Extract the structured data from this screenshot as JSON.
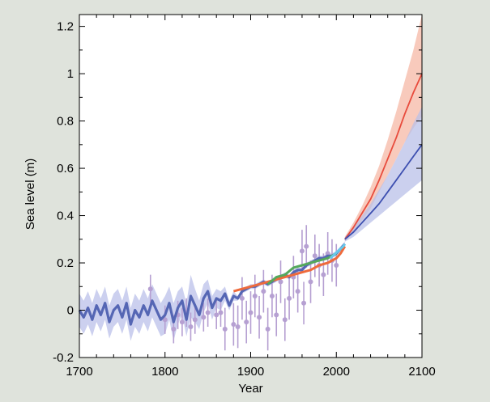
{
  "colors": {
    "background": "#dfe3dc",
    "plot_background": "#ffffff",
    "reconstruction": "#5566b4",
    "reconstruction_band": "#c3c8ec",
    "tide_gauge_points": "#b6a0d2",
    "tide_gauge_red": "#ee6a3c",
    "tide_gauge_green": "#55a85c",
    "satellite": "#66c8ea",
    "projection_high": "#e84b3c",
    "projection_high_band": "#f5b8a6",
    "projection_low": "#3d4fb0",
    "projection_low_band": "#b9c0e8"
  },
  "chart_data": {
    "type": "line",
    "title": "",
    "xlabel": "Year",
    "ylabel": "Sea  level (m)",
    "xlim": [
      1700,
      2100
    ],
    "ylim": [
      -0.2,
      1.25
    ],
    "x_ticks": [
      "1700",
      "1800",
      "1900",
      "2000",
      "2100"
    ],
    "y_ticks": [
      "-0.2",
      "0",
      "0.2",
      "0.4",
      "0.6",
      "0.8",
      "1",
      "1.2"
    ],
    "grid": false,
    "legend": "none",
    "reconstruction": {
      "x": [
        1700,
        1705,
        1710,
        1715,
        1720,
        1725,
        1730,
        1735,
        1740,
        1745,
        1750,
        1755,
        1760,
        1765,
        1770,
        1775,
        1780,
        1785,
        1790,
        1795,
        1800,
        1805,
        1810,
        1815,
        1820,
        1825,
        1830,
        1835,
        1840,
        1845,
        1850,
        1855,
        1860,
        1865,
        1870,
        1875,
        1880,
        1885,
        1890,
        1895,
        1900,
        1905,
        1910,
        1915,
        1920,
        1925,
        1930,
        1935,
        1940,
        1945,
        1950,
        1955,
        1960,
        1965,
        1970,
        1975,
        1980,
        1985,
        1990,
        1995,
        2000,
        2005,
        2010
      ],
      "y": [
        0.0,
        -0.03,
        0.01,
        -0.04,
        0.02,
        -0.02,
        0.03,
        -0.05,
        0.0,
        0.02,
        -0.03,
        0.03,
        -0.06,
        0.0,
        -0.03,
        0.02,
        -0.02,
        0.04,
        0.0,
        -0.04,
        -0.02,
        0.03,
        -0.05,
        0.01,
        0.04,
        -0.04,
        0.06,
        0.02,
        -0.02,
        0.05,
        0.08,
        0.01,
        0.05,
        0.04,
        0.07,
        0.02,
        0.06,
        0.05,
        0.08,
        0.09,
        0.1,
        0.1,
        0.11,
        0.12,
        0.11,
        0.12,
        0.13,
        0.14,
        0.15,
        0.14,
        0.16,
        0.17,
        0.17,
        0.19,
        0.2,
        0.21,
        0.22,
        0.22,
        0.23,
        0.23,
        0.24,
        0.26,
        0.28
      ],
      "band_half_width": [
        0.07,
        0.07,
        0.07,
        0.07,
        0.07,
        0.07,
        0.07,
        0.07,
        0.07,
        0.07,
        0.07,
        0.07,
        0.07,
        0.07,
        0.07,
        0.07,
        0.07,
        0.07,
        0.07,
        0.07,
        0.08,
        0.07,
        0.08,
        0.07,
        0.06,
        0.07,
        0.09,
        0.07,
        0.06,
        0.06,
        0.05,
        0.05,
        0.04,
        0.04,
        0.03,
        0.02,
        0.02,
        0.01,
        0.01,
        0.01,
        0.01,
        0.01,
        0.01,
        0.01,
        0.01,
        0.01,
        0.01,
        0.01,
        0.01,
        0.01,
        0.01,
        0.01,
        0.01,
        0.01,
        0.01,
        0.01,
        0.01,
        0.01,
        0.01,
        0.01,
        0.01,
        0.01,
        0.01
      ]
    },
    "tide_gauge_points": {
      "x": [
        1783,
        1800,
        1810,
        1815,
        1820,
        1825,
        1830,
        1835,
        1845,
        1850,
        1860,
        1865,
        1870,
        1880,
        1885,
        1890,
        1895,
        1900,
        1905,
        1910,
        1915,
        1920,
        1925,
        1930,
        1935,
        1940,
        1945,
        1950,
        1955,
        1960,
        1962,
        1965,
        1970,
        1975,
        1980,
        1985,
        1990,
        1995,
        2000
      ],
      "y": [
        0.09,
        -0.04,
        -0.08,
        -0.02,
        -0.05,
        -0.01,
        -0.07,
        -0.04,
        -0.03,
        -0.01,
        -0.02,
        -0.01,
        -0.08,
        -0.06,
        -0.07,
        0.05,
        -0.05,
        -0.01,
        0.06,
        -0.03,
        0.08,
        -0.08,
        0.06,
        -0.02,
        0.12,
        -0.04,
        0.05,
        0.14,
        0.08,
        0.25,
        0.03,
        0.27,
        0.12,
        0.23,
        0.19,
        0.15,
        0.24,
        0.21,
        0.19
      ],
      "err": [
        0.06,
        0.06,
        0.06,
        0.06,
        0.06,
        0.06,
        0.06,
        0.06,
        0.06,
        0.06,
        0.06,
        0.06,
        0.09,
        0.09,
        0.09,
        0.09,
        0.09,
        0.09,
        0.09,
        0.09,
        0.09,
        0.09,
        0.09,
        0.09,
        0.09,
        0.09,
        0.09,
        0.09,
        0.09,
        0.09,
        0.09,
        0.09,
        0.09,
        0.09,
        0.09,
        0.09,
        0.09,
        0.09,
        0.09
      ]
    },
    "series": [
      {
        "x": [
          1880,
          1890,
          1900,
          1910,
          1920,
          1930,
          1940,
          1950,
          1960,
          1970,
          1980,
          1990,
          2000,
          2005,
          2010
        ],
        "y": [
          0.08,
          0.09,
          0.1,
          0.11,
          0.12,
          0.13,
          0.14,
          0.15,
          0.16,
          0.17,
          0.19,
          0.2,
          0.22,
          0.24,
          0.27
        ]
      },
      {
        "x": [
          1920,
          1930,
          1940,
          1950,
          1960,
          1970,
          1980,
          1990,
          2000
        ],
        "y": [
          0.11,
          0.14,
          0.15,
          0.18,
          0.19,
          0.2,
          0.21,
          0.22,
          0.24
        ]
      },
      {
        "x": [
          1993,
          1996,
          1999,
          2002,
          2005,
          2008,
          2010
        ],
        "y": [
          0.22,
          0.23,
          0.24,
          0.25,
          0.26,
          0.27,
          0.28
        ]
      },
      {
        "x": [
          2010,
          2020,
          2030,
          2040,
          2050,
          2060,
          2070,
          2080,
          2090,
          2100
        ],
        "y": [
          0.3,
          0.35,
          0.41,
          0.47,
          0.55,
          0.64,
          0.73,
          0.83,
          0.92,
          1.0
        ],
        "band_low": [
          0.29,
          0.33,
          0.38,
          0.43,
          0.5,
          0.57,
          0.64,
          0.71,
          0.77,
          0.82
        ],
        "band_high": [
          0.31,
          0.37,
          0.44,
          0.52,
          0.61,
          0.72,
          0.84,
          0.97,
          1.1,
          1.25
        ]
      },
      {
        "x": [
          2010,
          2020,
          2030,
          2040,
          2050,
          2060,
          2070,
          2080,
          2090,
          2100
        ],
        "y": [
          0.3,
          0.33,
          0.37,
          0.41,
          0.45,
          0.5,
          0.55,
          0.6,
          0.65,
          0.7
        ],
        "band_low": [
          0.29,
          0.31,
          0.34,
          0.37,
          0.4,
          0.43,
          0.46,
          0.49,
          0.52,
          0.55
        ],
        "band_high": [
          0.31,
          0.35,
          0.4,
          0.45,
          0.51,
          0.57,
          0.64,
          0.71,
          0.79,
          0.86
        ]
      }
    ]
  }
}
